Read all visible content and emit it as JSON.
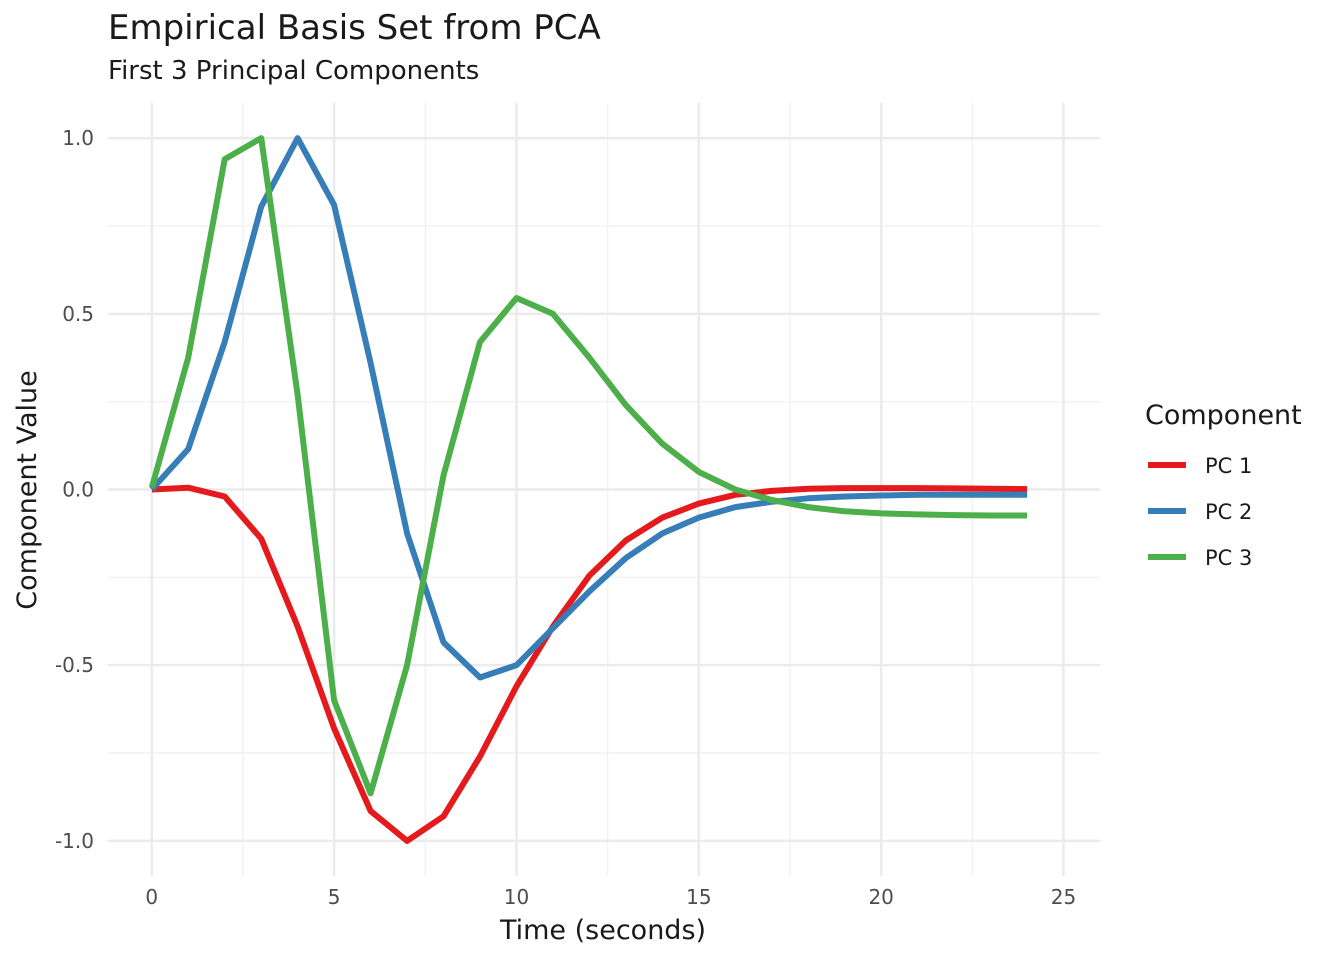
{
  "chart_data": {
    "type": "line",
    "title": "Empirical Basis Set from PCA",
    "subtitle": "First 3 Principal Components",
    "xlabel": "Time (seconds)",
    "ylabel": "Component Value",
    "xlim": [
      -1.2,
      26
    ],
    "ylim": [
      -1.1,
      1.1
    ],
    "x_ticks": [
      0,
      5,
      10,
      15,
      20,
      25
    ],
    "x_tick_labels": [
      "0",
      "5",
      "10",
      "15",
      "20",
      "25"
    ],
    "y_ticks": [
      -1.0,
      -0.5,
      0.0,
      0.5,
      1.0
    ],
    "y_tick_labels": [
      "-1.0",
      "-0.5",
      "0.0",
      "0.5",
      "1.0"
    ],
    "grid": true,
    "legend": {
      "title": "Component",
      "position": "right"
    },
    "x": [
      0,
      1,
      2,
      3,
      4,
      5,
      6,
      7,
      8,
      9,
      10,
      11,
      12,
      13,
      14,
      15,
      16,
      17,
      18,
      19,
      20,
      21,
      22,
      23,
      24
    ],
    "series": [
      {
        "name": "PC 1",
        "color": "#E41A1C",
        "values": [
          0.0,
          0.005,
          -0.02,
          -0.14,
          -0.39,
          -0.68,
          -0.915,
          -1.0,
          -0.93,
          -0.76,
          -0.56,
          -0.39,
          -0.245,
          -0.145,
          -0.08,
          -0.04,
          -0.015,
          -0.004,
          0.002,
          0.004,
          0.004,
          0.004,
          0.003,
          0.002,
          0.001
        ]
      },
      {
        "name": "PC 2",
        "color": "#377EB8",
        "values": [
          0.0,
          0.115,
          0.42,
          0.805,
          1.0,
          0.81,
          0.36,
          -0.125,
          -0.435,
          -0.535,
          -0.5,
          -0.395,
          -0.29,
          -0.195,
          -0.125,
          -0.08,
          -0.05,
          -0.035,
          -0.025,
          -0.02,
          -0.017,
          -0.015,
          -0.015,
          -0.015,
          -0.015
        ]
      },
      {
        "name": "PC 3",
        "color": "#4DAF4A",
        "values": [
          0.005,
          0.375,
          0.94,
          1.0,
          0.27,
          -0.6,
          -0.865,
          -0.5,
          0.04,
          0.42,
          0.545,
          0.5,
          0.375,
          0.24,
          0.13,
          0.05,
          0.0,
          -0.03,
          -0.05,
          -0.062,
          -0.068,
          -0.071,
          -0.073,
          -0.074,
          -0.074
        ]
      }
    ]
  }
}
